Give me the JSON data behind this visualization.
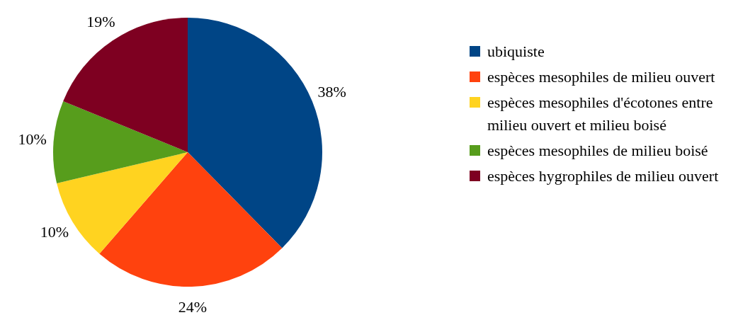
{
  "chart_data": {
    "type": "pie",
    "categories": [
      "ubiquiste",
      "espèces mesophiles de milieu ouvert",
      "espèces mesophiles d'écotones entre milieu ouvert et milieu boisé",
      "espèces mesophiles de milieu boisé",
      "espèces hygrophiles de milieu ouvert"
    ],
    "values": [
      38,
      24,
      10,
      10,
      19
    ],
    "value_labels": [
      "38%",
      "24%",
      "10%",
      "10%",
      "19%"
    ],
    "colors": [
      "#004586",
      "#ff420e",
      "#ffd320",
      "#579d1c",
      "#7e0021"
    ],
    "legend": "right"
  }
}
